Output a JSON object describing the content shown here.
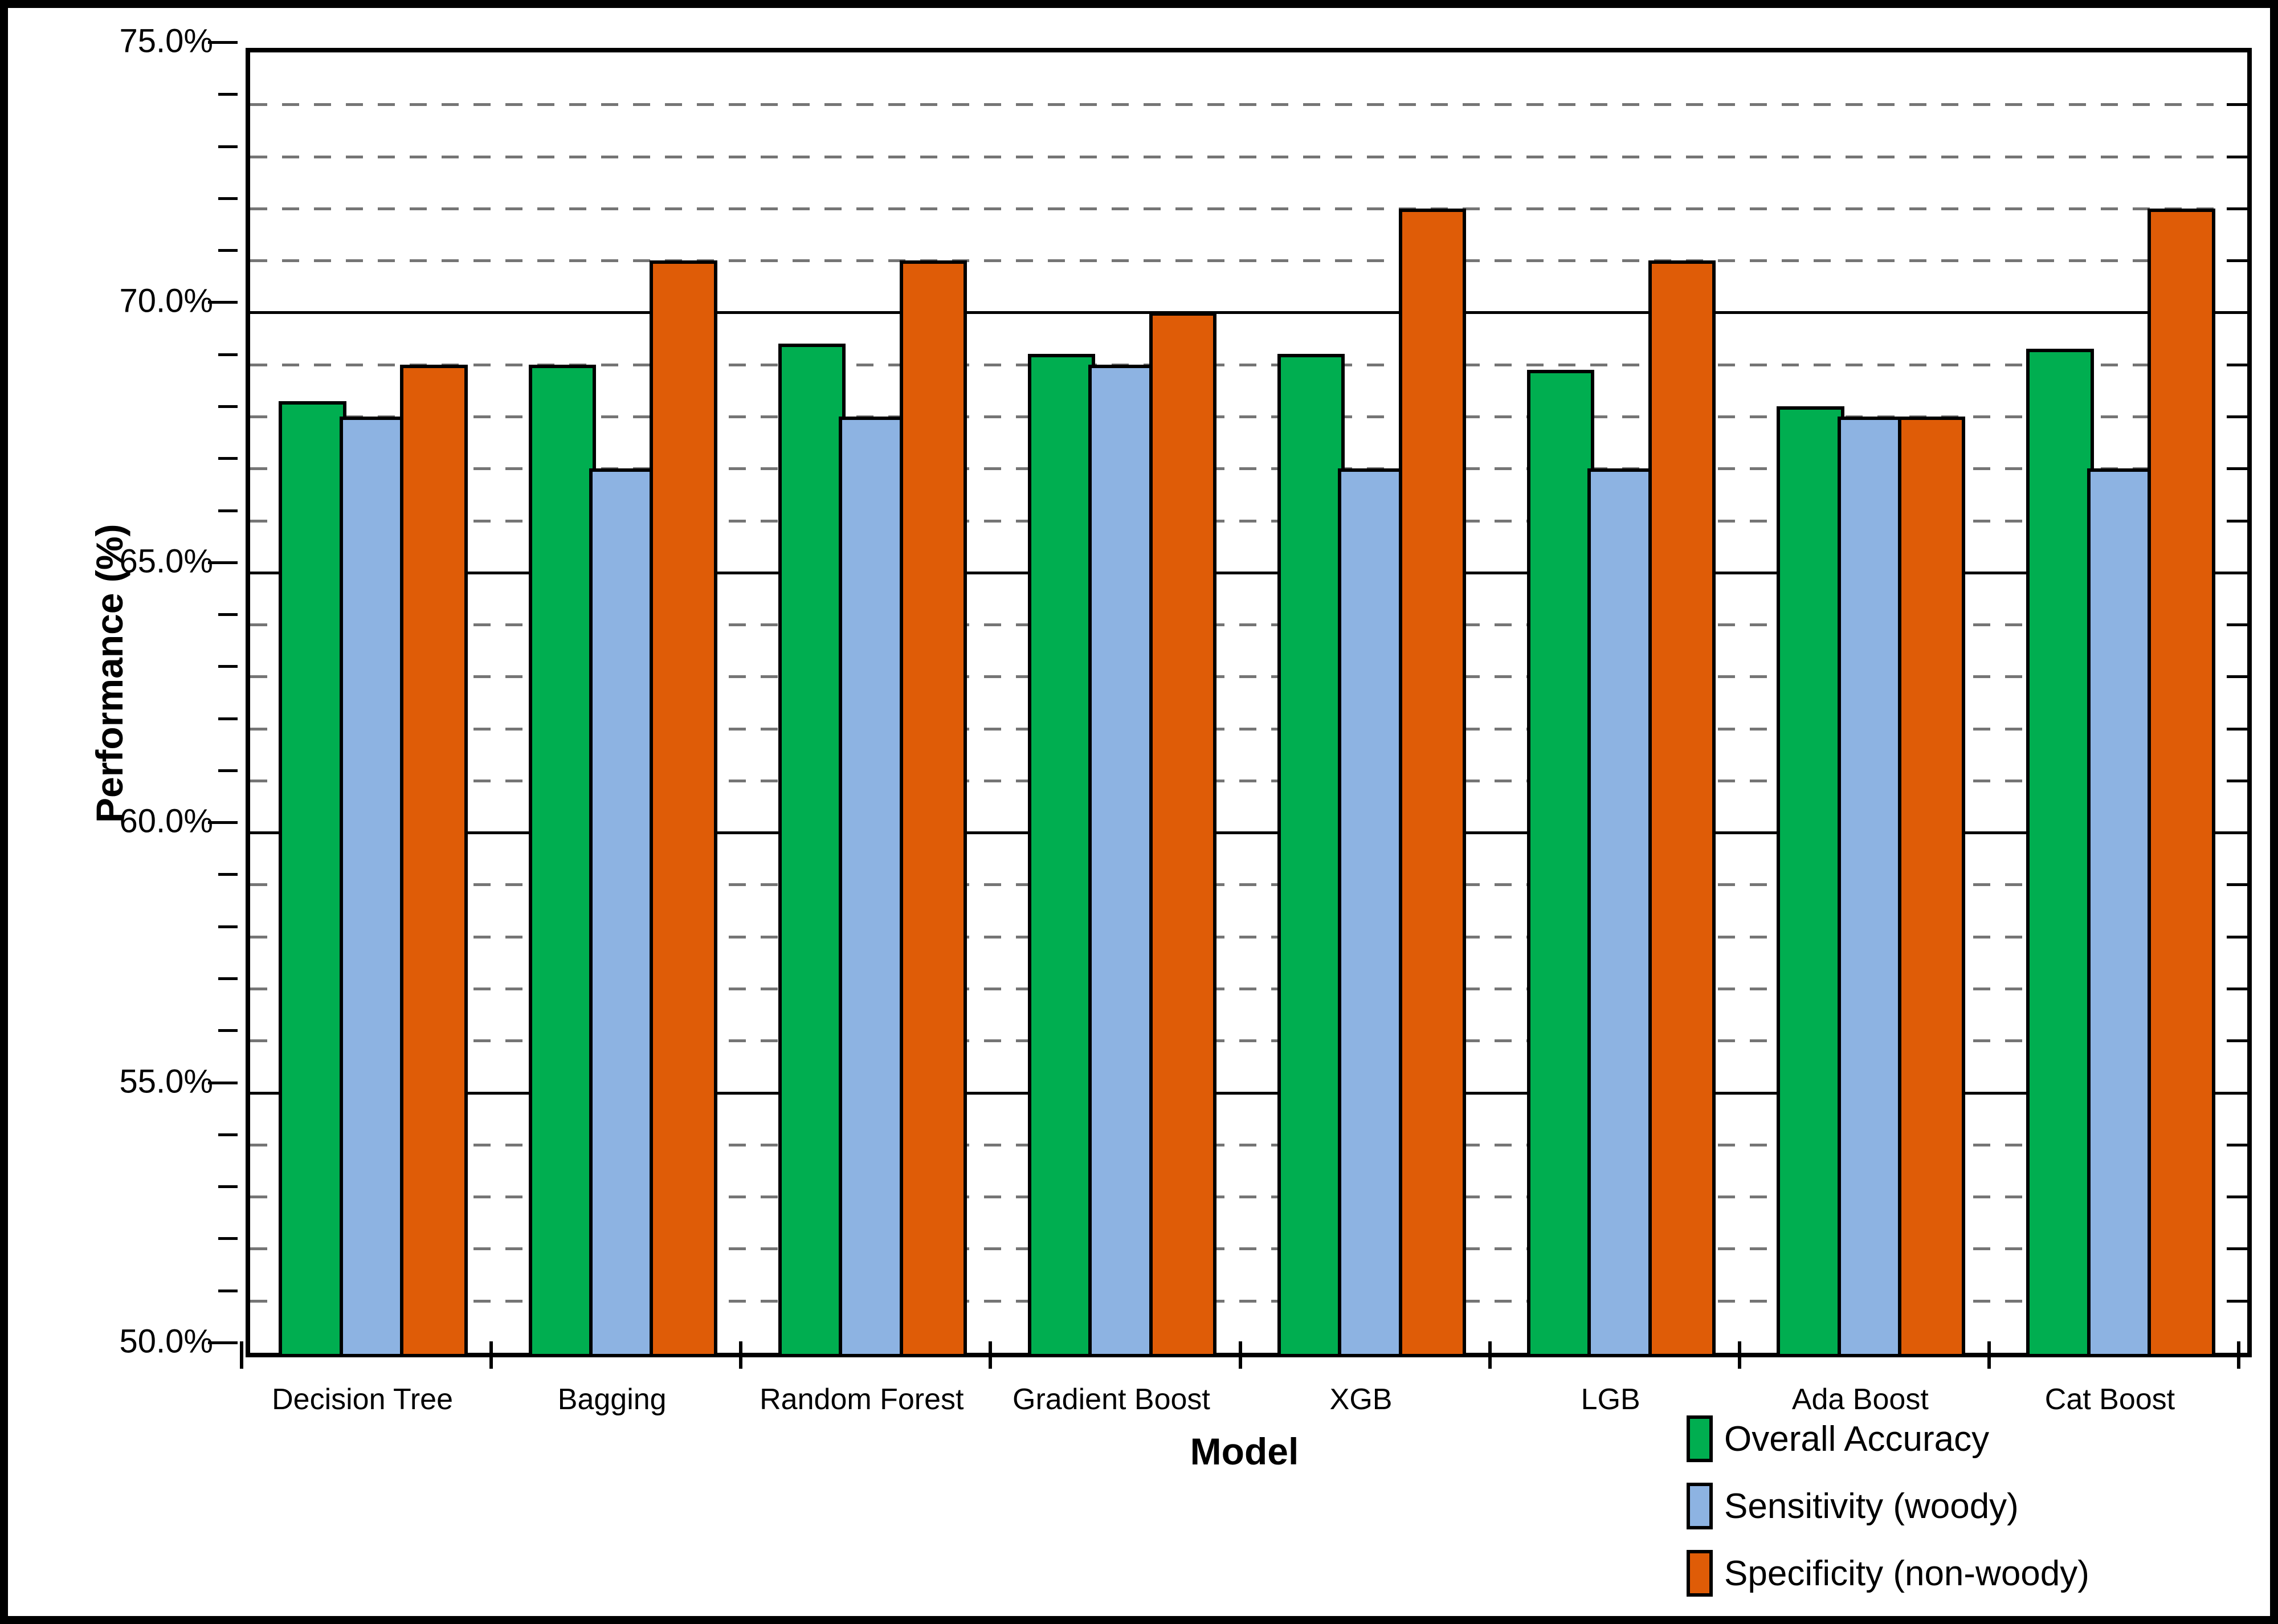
{
  "chart_data": {
    "type": "bar",
    "title": "",
    "xlabel": "Model",
    "ylabel": "Performance (%)",
    "ylim": [
      50,
      75
    ],
    "y_major_step": 5,
    "y_minor_step": 1,
    "grid": {
      "major": "solid",
      "minor": "dashed"
    },
    "legend_position": "bottom-right",
    "categories": [
      "Decision Tree",
      "Bagging",
      "Random Forest",
      "Gradient Boost",
      "XGB",
      "LGB",
      "Ada Boost",
      "Cat Boost"
    ],
    "series": [
      {
        "name": "Overall Accuracy",
        "color": "#00AE50",
        "values": [
          68.3,
          69.0,
          69.4,
          69.2,
          69.2,
          68.9,
          68.2,
          69.3
        ]
      },
      {
        "name": "Sensitivity (woody)",
        "color": "#8DB3E2",
        "values": [
          68.0,
          67.0,
          68.0,
          69.0,
          67.0,
          67.0,
          68.0,
          67.0
        ]
      },
      {
        "name": "Specificity (non-woody)",
        "color": "#DF5C07",
        "values": [
          69.0,
          71.0,
          71.0,
          70.0,
          72.0,
          71.0,
          68.0,
          72.0
        ]
      }
    ]
  },
  "y_axis": {
    "tick_labels": [
      "75.0%",
      "70.0%",
      "65.0%",
      "60.0%",
      "55.0%",
      "50.0%"
    ]
  },
  "colors": {
    "axis_line": "#000000",
    "major_gridline": "#000000",
    "minor_gridline": "#757575",
    "background": "#ffffff",
    "text": "#000000"
  }
}
